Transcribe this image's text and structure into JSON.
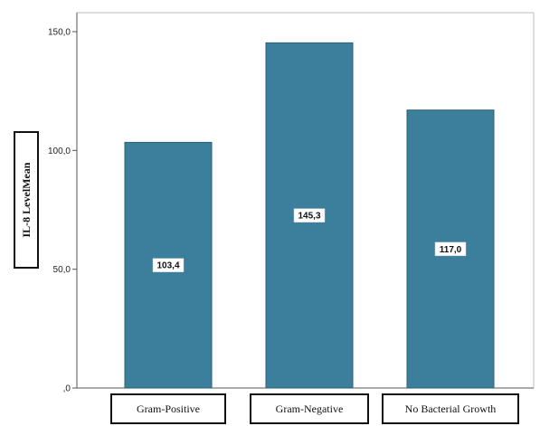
{
  "chart_data": {
    "type": "bar",
    "categories": [
      "Gram-Positive",
      "Gram-Negative",
      "No Bacterial Growth"
    ],
    "values": [
      103.4,
      145.3,
      117.0
    ],
    "data_labels": [
      "103,4",
      "145,3",
      "117,0"
    ],
    "ylabel": "IL-8 LevelMean",
    "xlabel": "",
    "ylim": [
      0,
      150
    ],
    "y_ticks": [
      0,
      50,
      100,
      150
    ],
    "y_tick_labels": [
      ",0",
      "50,0",
      "100,0",
      "150,0"
    ],
    "grid": false,
    "bar_color": "#3b7f9c"
  }
}
